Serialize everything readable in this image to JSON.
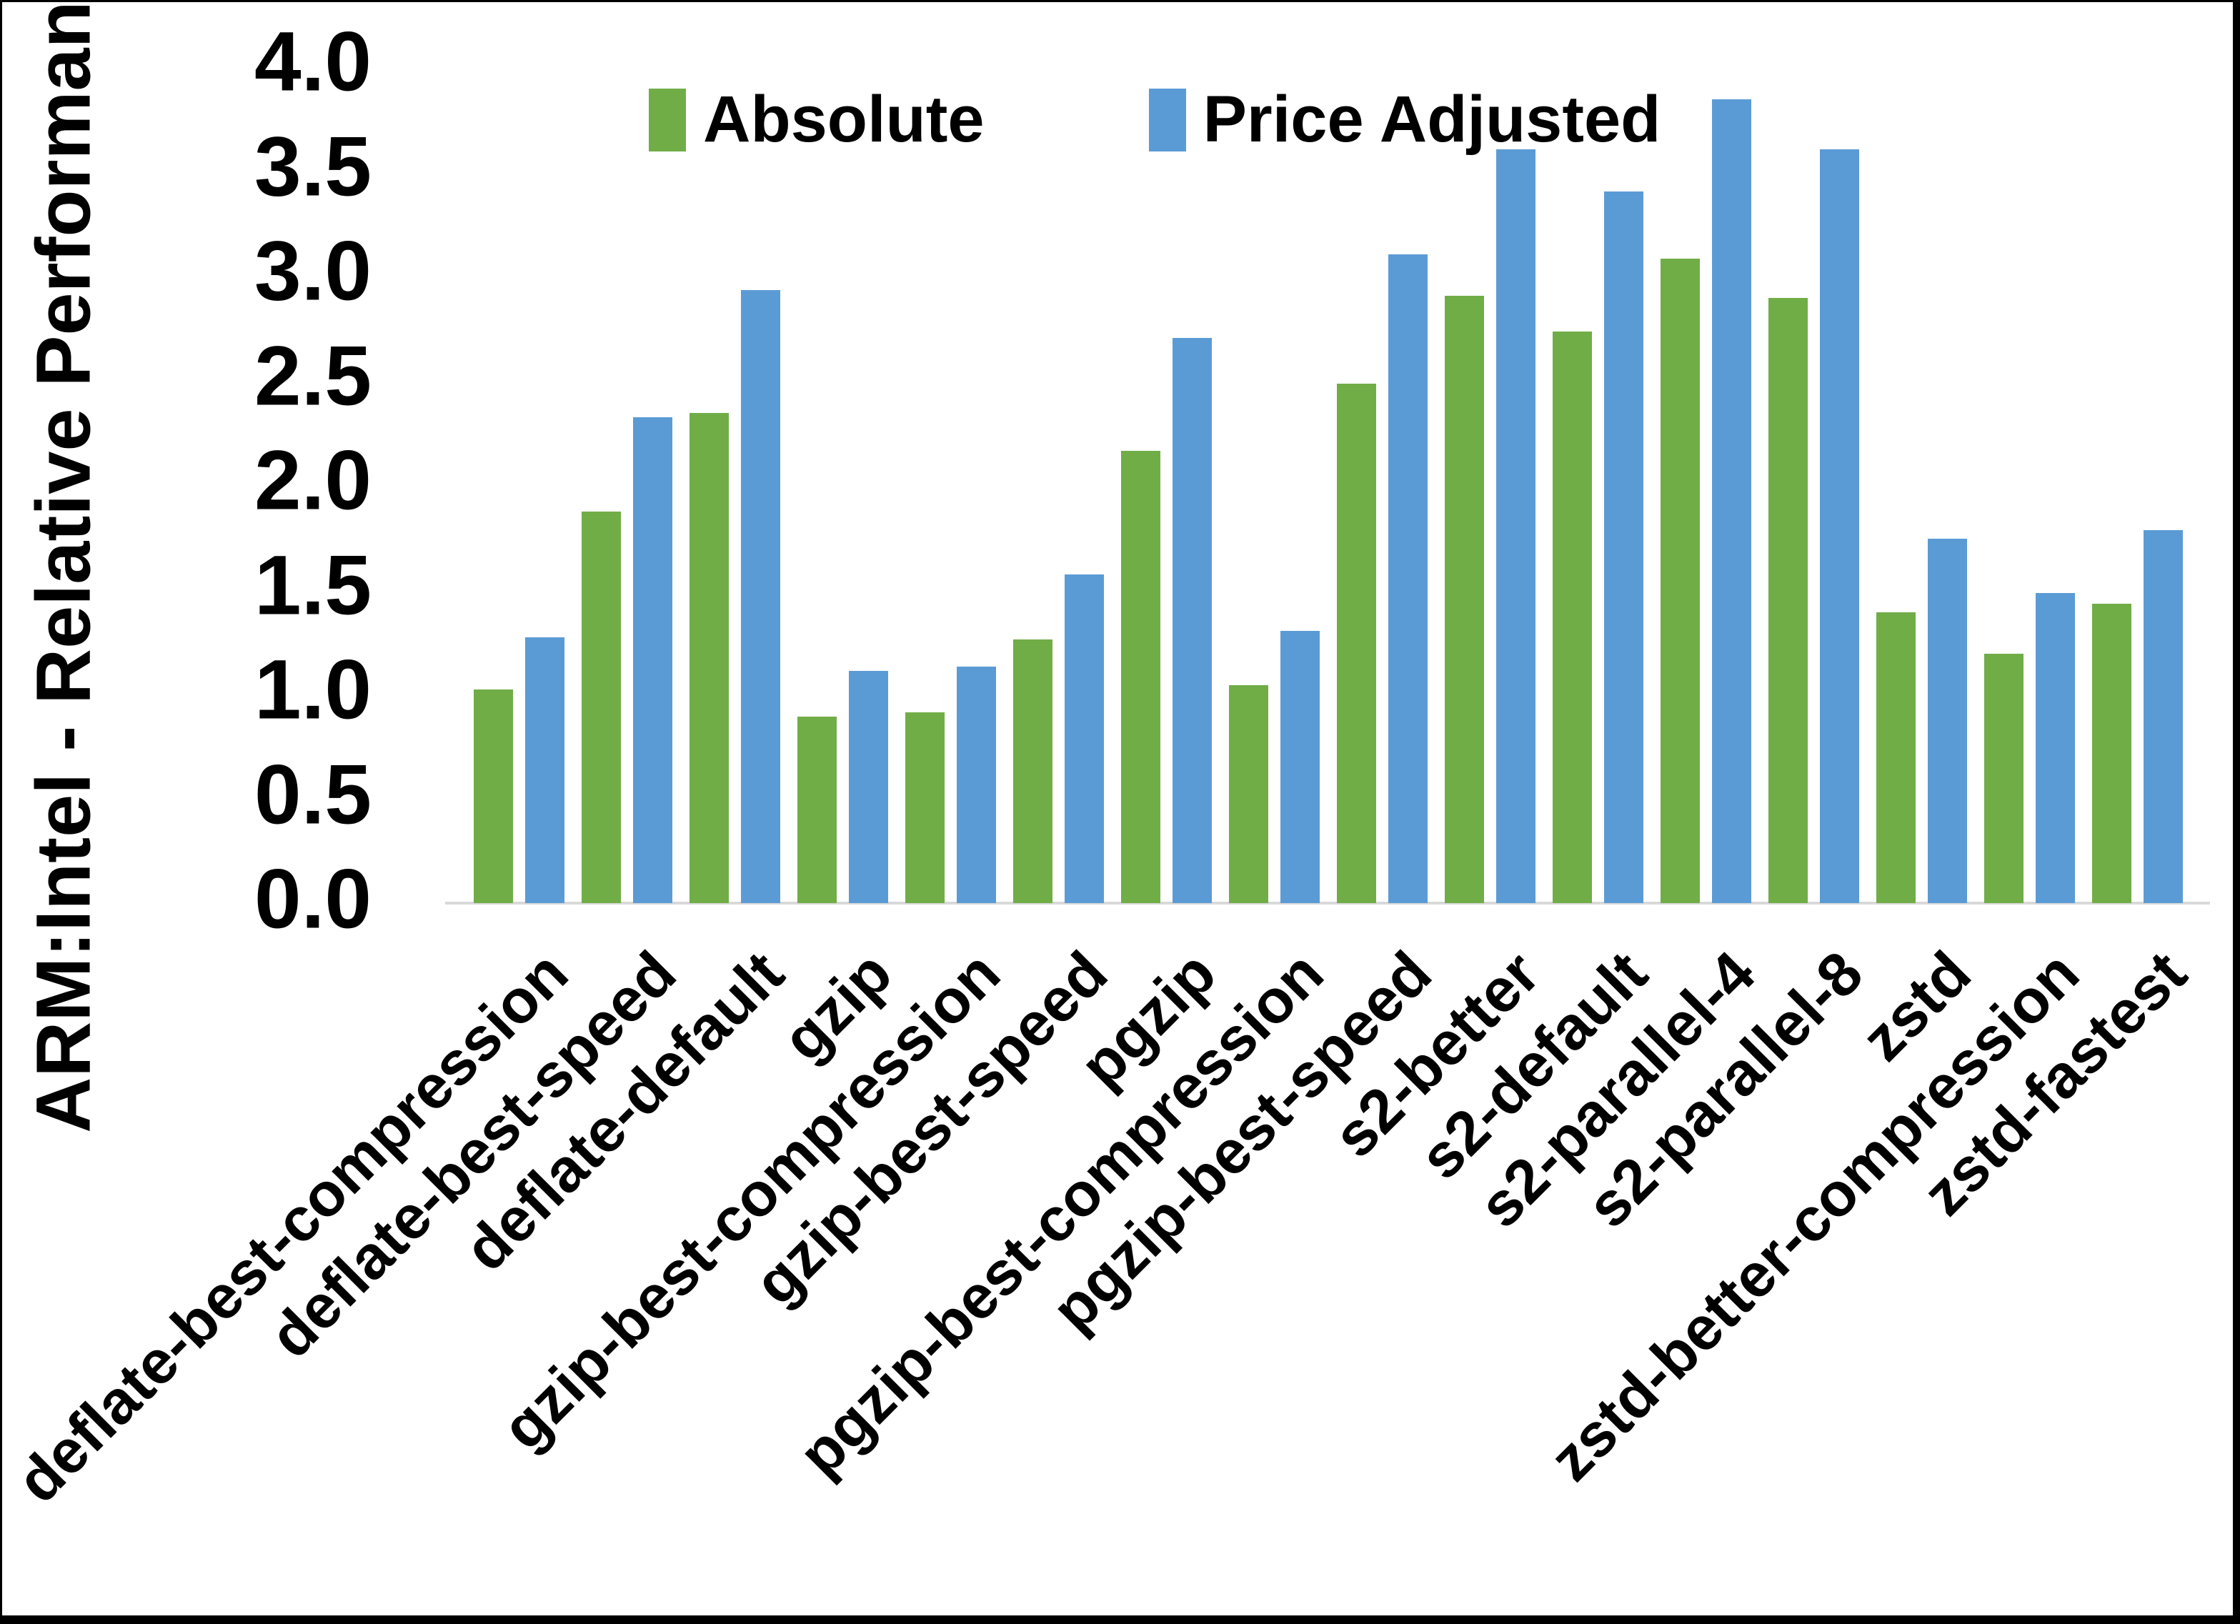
{
  "chart_data": {
    "type": "bar",
    "title": "",
    "xlabel": "",
    "ylabel": "ARM:Intel - Relative Performance",
    "ylim": [
      0.0,
      4.0
    ],
    "ytick_step": 0.5,
    "ytick_labels": [
      "0.0",
      "0.5",
      "1.0",
      "1.5",
      "2.0",
      "2.5",
      "3.0",
      "3.5",
      "4.0"
    ],
    "grid": false,
    "legend_position": "top-center",
    "categories": [
      "deflate-best-compression",
      "deflate-best-speed",
      "deflate-default",
      "gzip",
      "gzip-best-compression",
      "gzip-best-speed",
      "pgzip",
      "pgzip-best-compression",
      "pgzip-best-speed",
      "s2-better",
      "s2-default",
      "s2-parallel-4",
      "s2-parallel-8",
      "zstd",
      "zstd-better-compression",
      "zstd-fastest"
    ],
    "series": [
      {
        "name": "Absolute",
        "color": "#70AD47",
        "values": [
          1.02,
          1.87,
          2.34,
          0.89,
          0.91,
          1.26,
          2.16,
          1.04,
          2.48,
          2.9,
          2.73,
          3.08,
          2.89,
          1.39,
          1.19,
          1.43
        ]
      },
      {
        "name": "Price Adjusted",
        "color": "#5B9BD5",
        "values": [
          1.27,
          2.32,
          2.93,
          1.11,
          1.13,
          1.57,
          2.7,
          1.3,
          3.1,
          3.6,
          3.4,
          3.84,
          3.6,
          1.74,
          1.48,
          1.78
        ]
      }
    ],
    "colors": {
      "axis_line": "#D9D9D9",
      "text": "#000000",
      "background": "#FFFFFF",
      "border": "#000000"
    }
  }
}
